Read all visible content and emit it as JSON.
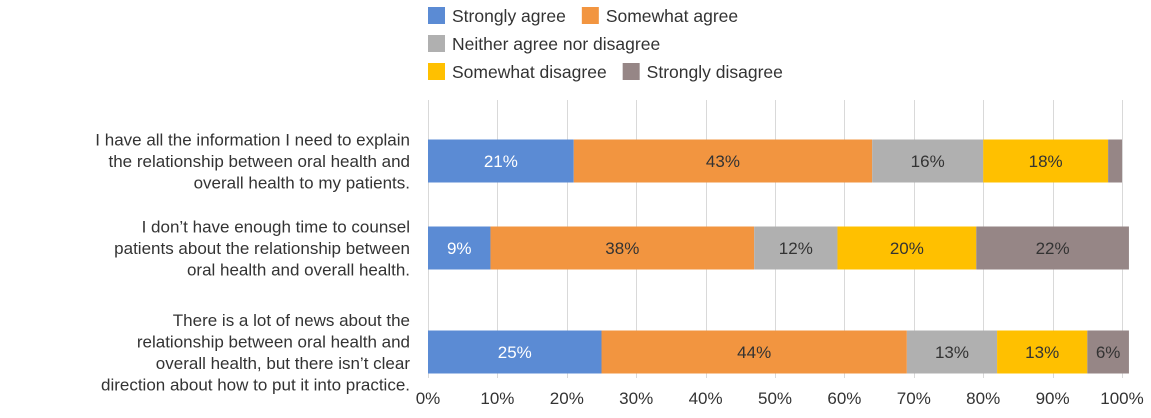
{
  "chart_data": {
    "type": "bar",
    "orientation": "horizontal",
    "stacked": "percent",
    "title": "",
    "xlabel": "",
    "ylabel": "",
    "xlim": [
      0,
      100
    ],
    "x_ticks": [
      "0%",
      "10%",
      "20%",
      "30%",
      "40%",
      "50%",
      "60%",
      "70%",
      "80%",
      "90%",
      "100%"
    ],
    "grid": "vertical",
    "legend_position": "top",
    "categories": [
      {
        "lines": [
          "I have all the information I need to explain",
          "the relationship between oral health and",
          "overall health to my patients."
        ]
      },
      {
        "lines": [
          "I don’t have enough time to counsel",
          "patients about the relationship between",
          "oral health and overall health."
        ]
      },
      {
        "lines": [
          "There is a lot of news about the",
          "relationship between oral health and",
          "overall health, but there isn’t clear",
          "direction about how to put it into practice."
        ]
      }
    ],
    "series": [
      {
        "name": "Strongly agree",
        "color": "#5b8bd4",
        "values": [
          21,
          9,
          25
        ],
        "labels": [
          "21%",
          "9%",
          "25%"
        ],
        "label_color": "#ffffff"
      },
      {
        "name": "Somewhat agree",
        "color": "#f29540",
        "values": [
          43,
          38,
          44
        ],
        "labels": [
          "43%",
          "38%",
          "44%"
        ],
        "label_color": "#333333"
      },
      {
        "name": "Neither agree nor disagree",
        "color": "#b0b0b0",
        "values": [
          16,
          12,
          13
        ],
        "labels": [
          "16%",
          "12%",
          "13%"
        ],
        "label_color": "#333333"
      },
      {
        "name": "Somewhat disagree",
        "color": "#ffc000",
        "values": [
          18,
          20,
          13
        ],
        "labels": [
          "18%",
          "20%",
          "13%"
        ],
        "label_color": "#333333"
      },
      {
        "name": "Strongly disagree",
        "color": "#968686",
        "values": [
          2,
          22,
          6
        ],
        "labels": [
          "",
          "22%",
          "6%"
        ],
        "label_color": "#333333"
      }
    ]
  }
}
